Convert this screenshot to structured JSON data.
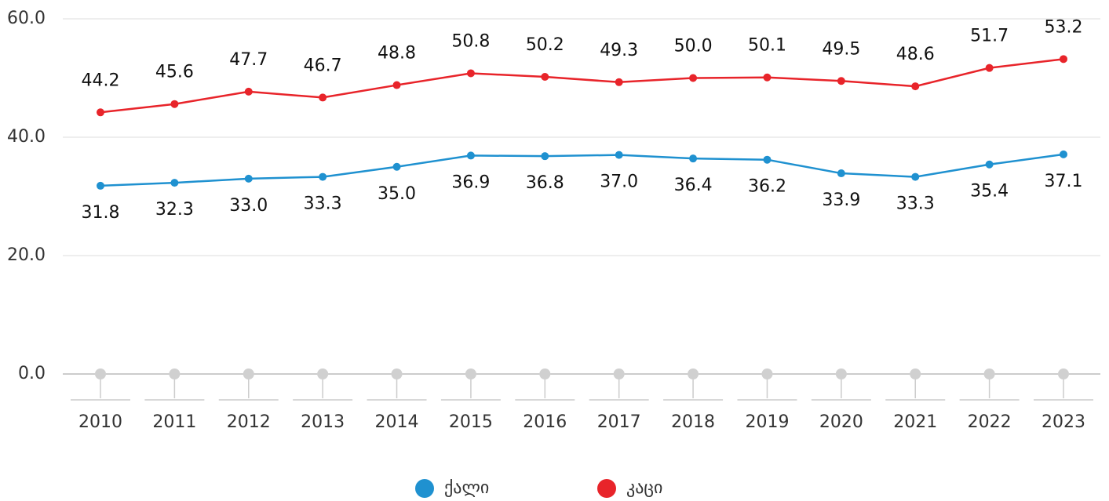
{
  "chart_data": {
    "type": "line",
    "categories": [
      "2010",
      "2011",
      "2012",
      "2013",
      "2014",
      "2015",
      "2016",
      "2017",
      "2018",
      "2019",
      "2020",
      "2021",
      "2022",
      "2023"
    ],
    "series": [
      {
        "name": "ქალი",
        "color": "#1f91d0",
        "values": [
          31.8,
          32.3,
          33.0,
          33.3,
          35.0,
          36.9,
          36.8,
          37.0,
          36.4,
          36.2,
          33.9,
          33.3,
          35.4,
          37.1
        ],
        "value_labels": [
          "31.8",
          "32.3",
          "33.0",
          "33.3",
          "35.0",
          "36.9",
          "36.8",
          "37.0",
          "36.4",
          "36.2",
          "33.9",
          "33.3",
          "35.4",
          "37.1"
        ]
      },
      {
        "name": "კაცი",
        "color": "#e8242a",
        "values": [
          44.2,
          45.6,
          47.7,
          46.7,
          48.8,
          50.8,
          50.2,
          49.3,
          50.0,
          50.1,
          49.5,
          48.6,
          51.7,
          53.2
        ],
        "value_labels": [
          "44.2",
          "45.6",
          "47.7",
          "46.7",
          "48.8",
          "50.8",
          "50.2",
          "49.3",
          "50.0",
          "50.1",
          "49.5",
          "48.6",
          "51.7",
          "53.2"
        ]
      }
    ],
    "ylim": [
      0,
      60
    ],
    "yticks": [
      {
        "value": 0,
        "label": "0.0"
      },
      {
        "value": 20,
        "label": "20.0"
      },
      {
        "value": 40,
        "label": "40.0"
      },
      {
        "value": 60,
        "label": "60.0"
      }
    ],
    "grid": true,
    "legend": "bottom"
  }
}
